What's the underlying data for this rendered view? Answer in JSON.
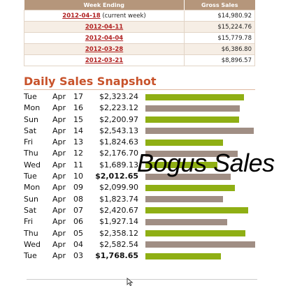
{
  "weekly_table": {
    "headers": [
      "Week Ending",
      "Gross Sales"
    ],
    "rows": [
      {
        "week": "2012-04-18",
        "note": "(current week)",
        "amount": "$14,980.92"
      },
      {
        "week": "2012-04-11",
        "note": "",
        "amount": "$15,224.76"
      },
      {
        "week": "2012-04-04",
        "note": "",
        "amount": "$15,779.78"
      },
      {
        "week": "2012-03-28",
        "note": "",
        "amount": "$6,386.80"
      },
      {
        "week": "2012-03-21",
        "note": "",
        "amount": "$8,896.57"
      }
    ]
  },
  "daily": {
    "title": "Daily Sales Snapshot",
    "bar_colors": {
      "green": "#8faf14",
      "brown": "#a08e84"
    },
    "bar_max_value": 2582.54,
    "rows": [
      {
        "dow": "Tue",
        "month": "Apr",
        "day": "17",
        "amount": "$2,323.24",
        "value": 2323.24,
        "color": "green",
        "bold": false
      },
      {
        "dow": "Mon",
        "month": "Apr",
        "day": "16",
        "amount": "$2,223.12",
        "value": 2223.12,
        "color": "brown",
        "bold": false
      },
      {
        "dow": "Sun",
        "month": "Apr",
        "day": "15",
        "amount": "$2,200.97",
        "value": 2200.97,
        "color": "green",
        "bold": false
      },
      {
        "dow": "Sat",
        "month": "Apr",
        "day": "14",
        "amount": "$2,543.13",
        "value": 2543.13,
        "color": "brown",
        "bold": false
      },
      {
        "dow": "Fri",
        "month": "Apr",
        "day": "13",
        "amount": "$1,824.63",
        "value": 1824.63,
        "color": "green",
        "bold": false
      },
      {
        "dow": "Thu",
        "month": "Apr",
        "day": "12",
        "amount": "$2,176.70",
        "value": 2176.7,
        "color": "brown",
        "bold": false
      },
      {
        "dow": "Wed",
        "month": "Apr",
        "day": "11",
        "amount": "$1,689.13",
        "value": 1689.13,
        "color": "green",
        "bold": false
      },
      {
        "dow": "Tue",
        "month": "Apr",
        "day": "10",
        "amount": "$2,012.65",
        "value": 2012.65,
        "color": "brown",
        "bold": true
      },
      {
        "dow": "Mon",
        "month": "Apr",
        "day": "09",
        "amount": "$2,099.90",
        "value": 2099.9,
        "color": "green",
        "bold": false
      },
      {
        "dow": "Sun",
        "month": "Apr",
        "day": "08",
        "amount": "$1,823.74",
        "value": 1823.74,
        "color": "brown",
        "bold": false
      },
      {
        "dow": "Sat",
        "month": "Apr",
        "day": "07",
        "amount": "$2,420.67",
        "value": 2420.67,
        "color": "green",
        "bold": false
      },
      {
        "dow": "Fri",
        "month": "Apr",
        "day": "06",
        "amount": "$1,927.14",
        "value": 1927.14,
        "color": "brown",
        "bold": false
      },
      {
        "dow": "Thu",
        "month": "Apr",
        "day": "05",
        "amount": "$2,358.12",
        "value": 2358.12,
        "color": "green",
        "bold": false
      },
      {
        "dow": "Wed",
        "month": "Apr",
        "day": "04",
        "amount": "$2,582.54",
        "value": 2582.54,
        "color": "brown",
        "bold": false
      },
      {
        "dow": "Tue",
        "month": "Apr",
        "day": "03",
        "amount": "$1,768.65",
        "value": 1768.65,
        "color": "green",
        "bold": true
      }
    ]
  },
  "overlay_text": "Bogus Sales",
  "cursor_icon": "mouse-pointer-icon"
}
